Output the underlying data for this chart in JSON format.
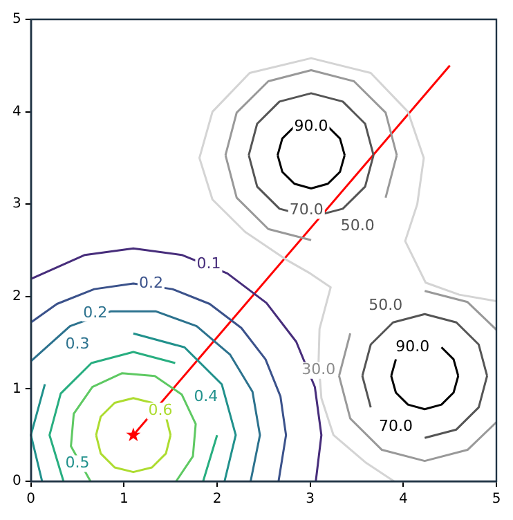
{
  "chart_data": {
    "type": "line",
    "xlim": [
      0,
      5
    ],
    "ylim": [
      0,
      5
    ],
    "xticks": [
      0,
      1,
      2,
      3,
      4,
      5
    ],
    "yticks": [
      0,
      1,
      2,
      3,
      4,
      5
    ],
    "grid": false,
    "legend": false,
    "marker": "none",
    "line_style": "solid",
    "series": [
      {
        "color": "#472d7b",
        "x": [
          3.06,
          3.12,
          3.05,
          2.85,
          2.53,
          2.11,
          1.62,
          1.1,
          0.58,
          0
        ],
        "values": [
          0,
          0.5,
          1.02,
          1.51,
          1.93,
          2.25,
          2.45,
          2.52,
          2.45,
          2.19
        ]
      },
      {
        "color": "#3b528b",
        "x": [
          2.66,
          2.74,
          2.68,
          2.52,
          2.26,
          1.92,
          1.52,
          1.1,
          0.68,
          0.28,
          0
        ],
        "values": [
          0,
          0.5,
          0.92,
          1.32,
          1.66,
          1.92,
          2.08,
          2.14,
          2.08,
          1.92,
          1.72
        ]
      },
      {
        "color": "#2c728e",
        "x": [
          2.36,
          2.46,
          2.38,
          2.14,
          1.78,
          1.34,
          0.86,
          0.42,
          0
        ],
        "values": [
          0,
          0.5,
          0.97,
          1.37,
          1.68,
          1.84,
          1.84,
          1.68,
          1.3
        ]
      },
      {
        "color": "#21918c",
        "x": [
          2.08,
          2.2,
          2.05,
          1.65,
          1.1,
          0.55,
          0.15,
          0,
          0.12
        ],
        "values": [
          0,
          0.5,
          1.05,
          1.45,
          1.6,
          null,
          1.05,
          0.5,
          0
        ]
      },
      {
        "color": "#28ae80",
        "x": [
          1.85,
          2.0,
          1.88,
          1.55,
          1.1,
          0.65,
          0.32,
          0.2,
          0.35
        ],
        "values": [
          0,
          0.5,
          null,
          1.28,
          1.4,
          1.28,
          0.95,
          0.5,
          0
        ]
      },
      {
        "color": "#5ec962",
        "x": [
          1.56,
          1.74,
          1.77,
          1.62,
          1.33,
          0.98,
          0.66,
          0.46,
          0.43,
          0.64
        ],
        "values": [
          0,
          0.27,
          0.62,
          0.94,
          1.14,
          1.17,
          1.02,
          0.73,
          0.38,
          0
        ]
      },
      {
        "color": "#addc30",
        "x": [
          1.5,
          1.45,
          1.3,
          1.1,
          0.9,
          0.75,
          0.7
        ],
        "values": [
          0.5,
          0.7,
          0.85,
          0.9,
          0.85,
          0.7,
          0.5
        ]
      },
      {
        "color": "#addc30",
        "x": [
          0.7,
          0.75,
          0.9,
          1.1,
          1.3,
          1.45,
          1.5
        ],
        "values": [
          0.5,
          0.3,
          0.15,
          0.1,
          0.15,
          0.3,
          0.5
        ]
      },
      {
        "color": "#d4d4d4",
        "x": [
          3.9,
          3.6,
          3.25,
          3.12,
          3.09,
          3.1,
          3.22,
          3.0,
          2.74,
          2.3,
          1.95,
          1.81,
          1.95,
          2.35,
          3.01,
          3.65,
          4.05,
          4.22,
          4.15,
          4.02,
          4.24,
          4.6,
          5
        ],
        "values": [
          0,
          0.2,
          0.5,
          0.9,
          1.3,
          1.65,
          2.1,
          2.25,
          2.4,
          2.7,
          3.05,
          3.5,
          4.0,
          4.42,
          4.58,
          4.42,
          4.0,
          3.5,
          3.0,
          2.6,
          2.15,
          2.02,
          1.95
        ]
      },
      {
        "color": "#999999",
        "x": [
          3.93,
          3.81,
          3.47,
          3.01,
          2.55,
          2.21,
          2.09
        ],
        "values": [
          3.53,
          3.99,
          4.33,
          4.45,
          4.33,
          3.99,
          3.53
        ]
      },
      {
        "color": "#999999",
        "x": [
          2.09,
          2.21,
          2.55,
          3.01,
          3.47,
          3.81,
          3.93
        ],
        "values": [
          3.53,
          3.07,
          2.73,
          2.61,
          null,
          3.07,
          3.53
        ]
      },
      {
        "color": "#555555",
        "x": [
          3.68,
          3.59,
          3.35,
          3.01,
          2.67,
          2.43,
          2.34
        ],
        "values": [
          3.53,
          3.87,
          4.11,
          4.2,
          4.11,
          3.87,
          3.53
        ]
      },
      {
        "color": "#555555",
        "x": [
          2.34,
          2.43,
          2.67,
          3.01,
          3.35,
          3.59,
          3.68
        ],
        "values": [
          3.53,
          3.19,
          2.95,
          2.86,
          2.95,
          3.19,
          3.53
        ]
      },
      {
        "color": "#000000",
        "x": [
          3.37,
          3.32,
          3.19,
          3.01,
          2.83,
          2.7,
          2.65
        ],
        "values": [
          3.53,
          3.71,
          3.84,
          null,
          3.84,
          3.71,
          3.53
        ]
      },
      {
        "color": "#000000",
        "x": [
          2.65,
          2.7,
          2.83,
          3.01,
          3.19,
          3.32,
          3.37
        ],
        "values": [
          3.53,
          3.35,
          3.22,
          3.17,
          3.22,
          3.35,
          3.53
        ]
      },
      {
        "color": "#999999",
        "x": [
          5,
          4.69,
          4.23,
          3.77,
          3.43,
          3.31
        ],
        "values": [
          1.64,
          1.94,
          2.06,
          null,
          1.6,
          1.14
        ]
      },
      {
        "color": "#999999",
        "x": [
          3.31,
          3.43,
          3.77,
          4.23,
          4.69,
          5
        ],
        "values": [
          1.14,
          0.68,
          0.34,
          0.22,
          0.34,
          0.64
        ]
      },
      {
        "color": "#555555",
        "x": [
          4.9,
          4.81,
          4.57,
          4.23,
          3.89,
          3.65,
          3.56
        ],
        "values": [
          1.14,
          1.48,
          1.72,
          1.81,
          1.72,
          1.48,
          1.14
        ]
      },
      {
        "color": "#555555",
        "x": [
          3.56,
          3.65,
          3.89,
          4.23,
          4.57,
          4.81,
          4.9
        ],
        "values": [
          1.14,
          0.8,
          null,
          0.47,
          0.56,
          0.8,
          1.14
        ]
      },
      {
        "color": "#000000",
        "x": [
          4.59,
          4.54,
          4.41,
          4.23,
          4.05,
          3.92,
          3.87
        ],
        "values": [
          1.14,
          1.32,
          1.45,
          null,
          null,
          1.32,
          1.14
        ]
      },
      {
        "color": "#000000",
        "x": [
          3.87,
          3.92,
          4.05,
          4.23,
          4.41,
          4.54,
          4.59
        ],
        "values": [
          1.14,
          0.96,
          0.83,
          0.78,
          0.83,
          0.96,
          1.14
        ]
      },
      {
        "color": "#ff0000",
        "x": [
          1.1,
          4.5
        ],
        "values": [
          0.5,
          4.5
        ]
      },
      {
        "type": "scatter",
        "marker": "star",
        "color": "#ff0000",
        "x": [
          1.1
        ],
        "values": [
          0.5
        ]
      }
    ],
    "annotations": [
      {
        "text": "0.1",
        "x": 1.91,
        "y": 2.35
      },
      {
        "text": "0.2",
        "x": 1.29,
        "y": 2.14
      },
      {
        "text": "0.2",
        "x": 0.69,
        "y": 1.82
      },
      {
        "text": "0.3",
        "x": 0.5,
        "y": 1.48
      },
      {
        "text": "0.4",
        "x": 1.88,
        "y": 0.91
      },
      {
        "text": "0.5",
        "x": 0.5,
        "y": 0.19
      },
      {
        "text": "0.6",
        "x": 1.39,
        "y": 0.76
      },
      {
        "text": "30.0",
        "x": 3.09,
        "y": 1.2
      },
      {
        "text": "50.0",
        "x": 3.51,
        "y": 2.76
      },
      {
        "text": "50.0",
        "x": 3.81,
        "y": 1.9
      },
      {
        "text": "70.0",
        "x": 2.96,
        "y": 2.93
      },
      {
        "text": "70.0",
        "x": 3.92,
        "y": 0.59
      },
      {
        "text": "90.0",
        "x": 3.01,
        "y": 3.84
      },
      {
        "text": "90.0",
        "x": 4.1,
        "y": 1.45
      }
    ]
  }
}
